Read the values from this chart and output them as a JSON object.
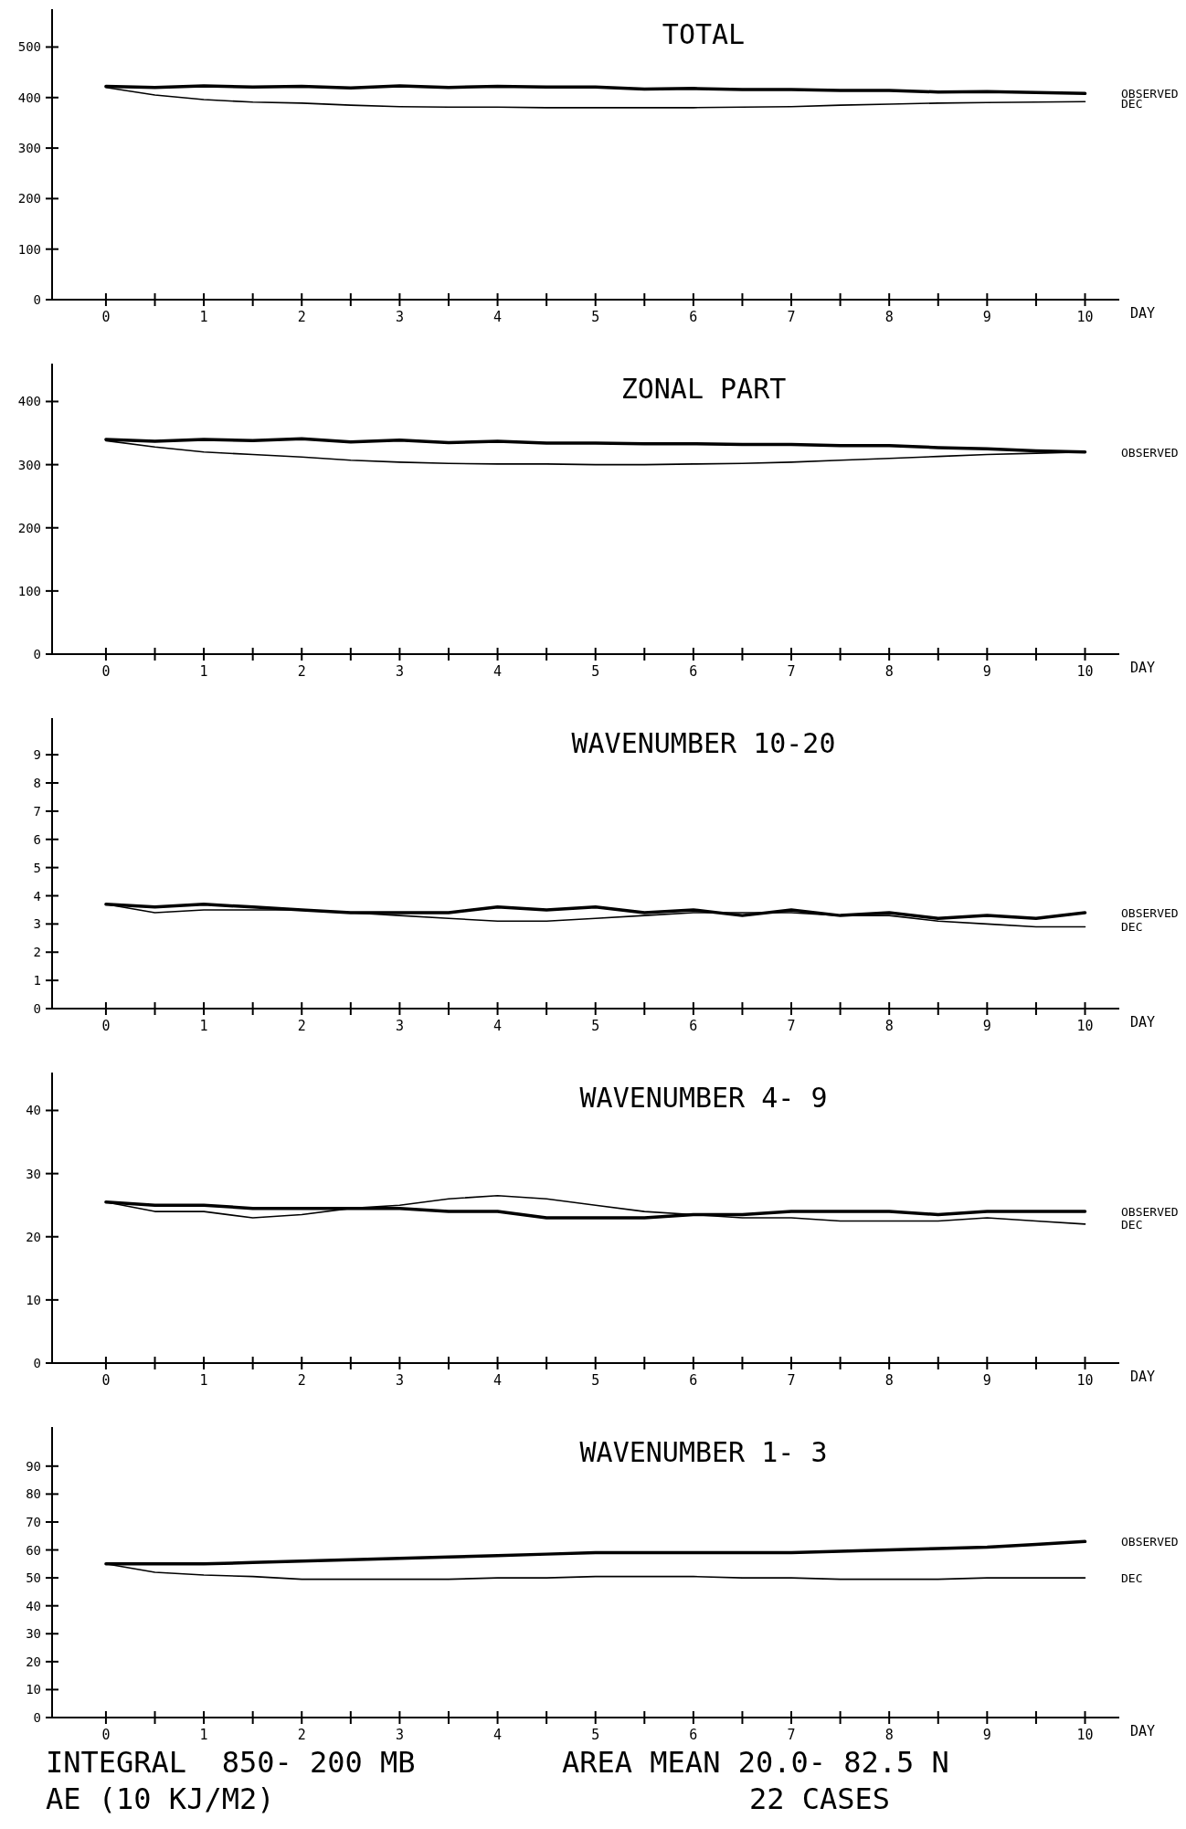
{
  "chart_data": [
    {
      "type": "line",
      "title": "TOTAL",
      "xlabel": "DAY",
      "x": [
        0,
        0.5,
        1,
        1.5,
        2,
        2.5,
        3,
        3.5,
        4,
        4.5,
        5,
        5.5,
        6,
        6.5,
        7,
        7.5,
        8,
        8.5,
        9,
        9.5,
        10
      ],
      "xlim": [
        -0.55,
        10.35
      ],
      "xticks": [
        0,
        {
          "value": 0.5,
          "label": null
        },
        1,
        {
          "value": 1.5,
          "label": null
        },
        2,
        {
          "value": 2.5,
          "label": null
        },
        3,
        {
          "value": 3.5,
          "label": null
        },
        4,
        {
          "value": 4.5,
          "label": null
        },
        5,
        {
          "value": 5.5,
          "label": null
        },
        6,
        {
          "value": 6.5,
          "label": null
        },
        7,
        {
          "value": 7.5,
          "label": null
        },
        8,
        {
          "value": 8.5,
          "label": null
        },
        9,
        {
          "value": 9.5,
          "label": null
        },
        10
      ],
      "ylim": [
        0,
        575
      ],
      "yticks": [
        0,
        100,
        200,
        300,
        400,
        500
      ],
      "series": [
        {
          "name": "OBSERVED",
          "color": "#000000",
          "values": [
            422,
            420,
            423,
            421,
            422,
            419,
            423,
            420,
            422,
            421,
            421,
            417,
            418,
            416,
            416,
            414,
            414,
            411,
            412,
            410,
            408
          ]
        },
        {
          "name": "DEC",
          "color": "#000000",
          "values": [
            420,
            405,
            396,
            391,
            389,
            385,
            382,
            381,
            381,
            380,
            380,
            380,
            380,
            381,
            382,
            385,
            387,
            389,
            390,
            391,
            392
          ]
        }
      ]
    },
    {
      "type": "line",
      "title": "ZONAL PART",
      "xlabel": "DAY",
      "x": [
        0,
        0.5,
        1,
        1.5,
        2,
        2.5,
        3,
        3.5,
        4,
        4.5,
        5,
        5.5,
        6,
        6.5,
        7,
        7.5,
        8,
        8.5,
        9,
        9.5,
        10
      ],
      "xlim": [
        -0.55,
        10.35
      ],
      "xticks": [
        0,
        {
          "value": 0.5,
          "label": null
        },
        1,
        {
          "value": 1.5,
          "label": null
        },
        2,
        {
          "value": 2.5,
          "label": null
        },
        3,
        {
          "value": 3.5,
          "label": null
        },
        4,
        {
          "value": 4.5,
          "label": null
        },
        5,
        {
          "value": 5.5,
          "label": null
        },
        6,
        {
          "value": 6.5,
          "label": null
        },
        7,
        {
          "value": 7.5,
          "label": null
        },
        8,
        {
          "value": 8.5,
          "label": null
        },
        9,
        {
          "value": 9.5,
          "label": null
        },
        10
      ],
      "ylim": [
        0,
        460
      ],
      "yticks": [
        0,
        100,
        200,
        300,
        400
      ],
      "series": [
        {
          "name": "OBSERVED",
          "color": "#000000",
          "values": [
            340,
            337,
            340,
            338,
            341,
            336,
            339,
            335,
            337,
            334,
            334,
            333,
            333,
            332,
            332,
            330,
            330,
            327,
            325,
            322,
            320
          ]
        },
        {
          "color": "#000000",
          "values": [
            338,
            328,
            320,
            316,
            312,
            307,
            304,
            302,
            301,
            301,
            300,
            300,
            301,
            302,
            304,
            307,
            310,
            313,
            316,
            318,
            320
          ]
        }
      ]
    },
    {
      "type": "line",
      "title": "WAVENUMBER 10-20",
      "xlabel": "DAY",
      "x": [
        0,
        0.5,
        1,
        1.5,
        2,
        2.5,
        3,
        3.5,
        4,
        4.5,
        5,
        5.5,
        6,
        6.5,
        7,
        7.5,
        8,
        8.5,
        9,
        9.5,
        10
      ],
      "xlim": [
        -0.55,
        10.35
      ],
      "xticks": [
        0,
        {
          "value": 0.5,
          "label": null
        },
        1,
        {
          "value": 1.5,
          "label": null
        },
        2,
        {
          "value": 2.5,
          "label": null
        },
        3,
        {
          "value": 3.5,
          "label": null
        },
        4,
        {
          "value": 4.5,
          "label": null
        },
        5,
        {
          "value": 5.5,
          "label": null
        },
        6,
        {
          "value": 6.5,
          "label": null
        },
        7,
        {
          "value": 7.5,
          "label": null
        },
        8,
        {
          "value": 8.5,
          "label": null
        },
        9,
        {
          "value": 9.5,
          "label": null
        },
        10
      ],
      "ylim": [
        0,
        10.3
      ],
      "yticks": [
        0,
        1,
        2,
        3,
        4,
        5,
        6,
        7,
        8,
        9
      ],
      "series": [
        {
          "name": "OBSERVED",
          "color": "#000000",
          "values": [
            3.7,
            3.6,
            3.7,
            3.6,
            3.5,
            3.4,
            3.4,
            3.4,
            3.6,
            3.5,
            3.6,
            3.4,
            3.5,
            3.3,
            3.5,
            3.3,
            3.4,
            3.2,
            3.3,
            3.2,
            3.4
          ]
        },
        {
          "name": "DEC",
          "color": "#000000",
          "values": [
            3.7,
            3.4,
            3.5,
            3.5,
            3.5,
            3.4,
            3.3,
            3.2,
            3.1,
            3.1,
            3.2,
            3.3,
            3.4,
            3.4,
            3.4,
            3.3,
            3.3,
            3.1,
            3.0,
            2.9,
            2.9
          ]
        }
      ]
    },
    {
      "type": "line",
      "title": "WAVENUMBER  4- 9",
      "xlabel": "DAY",
      "x": [
        0,
        0.5,
        1,
        1.5,
        2,
        2.5,
        3,
        3.5,
        4,
        4.5,
        5,
        5.5,
        6,
        6.5,
        7,
        7.5,
        8,
        8.5,
        9,
        9.5,
        10
      ],
      "xlim": [
        -0.55,
        10.35
      ],
      "xticks": [
        0,
        {
          "value": 0.5,
          "label": null
        },
        1,
        {
          "value": 1.5,
          "label": null
        },
        2,
        {
          "value": 2.5,
          "label": null
        },
        3,
        {
          "value": 3.5,
          "label": null
        },
        4,
        {
          "value": 4.5,
          "label": null
        },
        5,
        {
          "value": 5.5,
          "label": null
        },
        6,
        {
          "value": 6.5,
          "label": null
        },
        7,
        {
          "value": 7.5,
          "label": null
        },
        8,
        {
          "value": 8.5,
          "label": null
        },
        9,
        {
          "value": 9.5,
          "label": null
        },
        10
      ],
      "ylim": [
        0,
        46
      ],
      "yticks": [
        0,
        10,
        20,
        30,
        40
      ],
      "series": [
        {
          "name": "OBSERVED",
          "color": "#000000",
          "values": [
            25.5,
            25,
            25,
            24.5,
            24.5,
            24.5,
            24.5,
            24,
            24,
            23,
            23,
            23,
            23.5,
            23.5,
            24,
            24,
            24,
            23.5,
            24,
            24,
            24
          ]
        },
        {
          "name": "DEC",
          "color": "#000000",
          "values": [
            25.5,
            24,
            24,
            23,
            23.5,
            24.5,
            25,
            26,
            26.5,
            26,
            25,
            24,
            23.5,
            23,
            23,
            22.5,
            22.5,
            22.5,
            23,
            22.5,
            22
          ]
        }
      ]
    },
    {
      "type": "line",
      "title": "WAVENUMBER  1- 3",
      "xlabel": "DAY",
      "x": [
        0,
        0.5,
        1,
        1.5,
        2,
        2.5,
        3,
        3.5,
        4,
        4.5,
        5,
        5.5,
        6,
        6.5,
        7,
        7.5,
        8,
        8.5,
        9,
        9.5,
        10
      ],
      "xlim": [
        -0.55,
        10.35
      ],
      "xticks": [
        0,
        {
          "value": 0.5,
          "label": null
        },
        1,
        {
          "value": 1.5,
          "label": null
        },
        2,
        {
          "value": 2.5,
          "label": null
        },
        3,
        {
          "value": 3.5,
          "label": null
        },
        4,
        {
          "value": 4.5,
          "label": null
        },
        5,
        {
          "value": 5.5,
          "label": null
        },
        6,
        {
          "value": 6.5,
          "label": null
        },
        7,
        {
          "value": 7.5,
          "label": null
        },
        8,
        {
          "value": 8.5,
          "label": null
        },
        9,
        {
          "value": 9.5,
          "label": null
        },
        10
      ],
      "ylim": [
        0,
        104
      ],
      "yticks": [
        0,
        10,
        20,
        30,
        40,
        50,
        60,
        70,
        80,
        90
      ],
      "annotations": [
        "INTEGRAL  850- 200 MB",
        "AREA MEAN 20.0- 82.5 N",
        "AE (10 KJ/M2)",
        "22 CASES"
      ],
      "series": [
        {
          "name": "OBSERVED",
          "color": "#000000",
          "values": [
            55,
            55,
            55,
            55.5,
            56,
            56.5,
            57,
            57.5,
            58,
            58.5,
            59,
            59,
            59,
            59,
            59,
            59.5,
            60,
            60.5,
            61,
            62,
            63
          ]
        },
        {
          "name": "DEC",
          "color": "#000000",
          "values": [
            55,
            52,
            51,
            50.5,
            49.5,
            49.5,
            49.5,
            49.5,
            50,
            50,
            50.5,
            50.5,
            50.5,
            50,
            50,
            49.5,
            49.5,
            49.5,
            50,
            50,
            50
          ]
        }
      ]
    }
  ]
}
